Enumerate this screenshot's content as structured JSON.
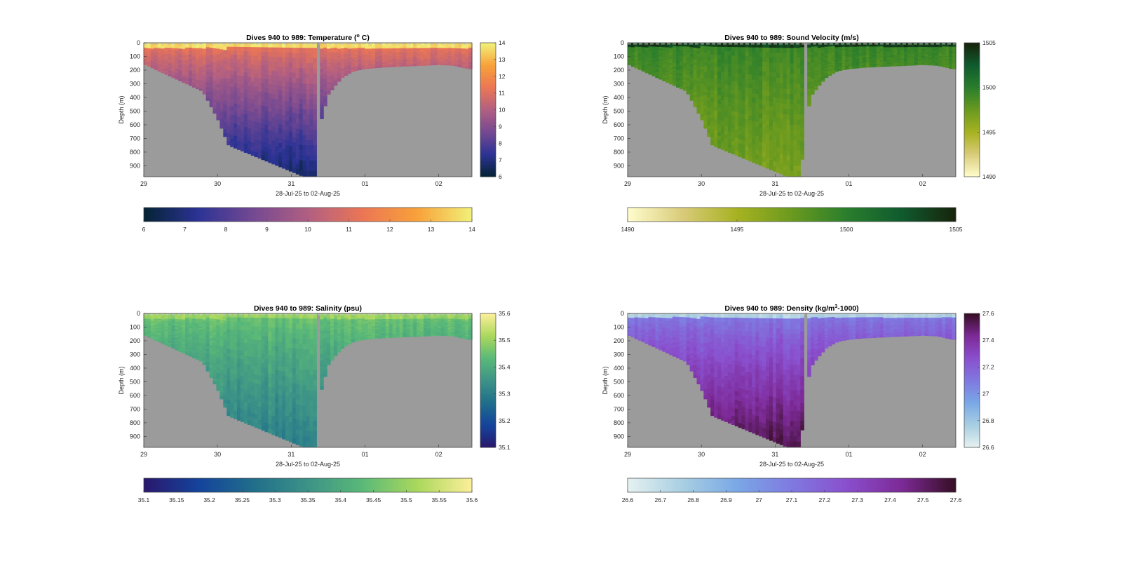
{
  "figure": {
    "background": "#ffffff",
    "land_color": "#9b9b9b",
    "axis_color": "#404040"
  },
  "chart_data": [
    {
      "type": "heatmap",
      "key": "temp",
      "title": "Dives 940 to 989: Temperature (",
      "title_sup": "o",
      "title_tail": " C)",
      "ylabel": "Depth (m)",
      "xlabel": "28-Jul-25 to 02-Aug-25",
      "x_ticks": [
        "29",
        "30",
        "31",
        "01",
        "02"
      ],
      "y_ticks": [
        "0",
        "100",
        "200",
        "300",
        "400",
        "500",
        "600",
        "700",
        "800",
        "900"
      ],
      "x_range_days": [
        29.0,
        33.45
      ],
      "ylim": [
        0,
        980
      ],
      "colormap": "thermal",
      "cmap_colors": [
        "#042333",
        "#2c3395",
        "#744992",
        "#b15f82",
        "#eb7655",
        "#f8a13a",
        "#f1f179"
      ],
      "clim": [
        6,
        14
      ],
      "colorbar_ticks": [
        "6",
        "7",
        "8",
        "9",
        "10",
        "11",
        "12",
        "13",
        "14"
      ],
      "horizontal_colorbar_ticks": [
        "6",
        "7",
        "8",
        "9",
        "10",
        "11",
        "12",
        "13",
        "14"
      ],
      "bathymetry": [
        [
          29.0,
          155
        ],
        [
          29.8,
          355
        ],
        [
          30.0,
          555
        ],
        [
          30.15,
          750
        ],
        [
          31.15,
          975
        ],
        [
          31.35,
          975
        ],
        [
          31.4,
          580
        ],
        [
          31.5,
          380
        ],
        [
          31.6,
          310
        ],
        [
          31.7,
          250
        ],
        [
          31.85,
          205
        ],
        [
          32.0,
          190
        ],
        [
          32.2,
          180
        ],
        [
          32.5,
          172
        ],
        [
          32.8,
          165
        ],
        [
          33.0,
          160
        ],
        [
          33.2,
          165
        ],
        [
          33.4,
          190
        ]
      ],
      "profile_gap": [
        31.32,
        31.4
      ],
      "surface": {
        "value": 13.6,
        "mixed_layer_depth_m": 40
      },
      "thermocline": {
        "value_top": 11.2,
        "value_bottom": 6.6,
        "bottom_depth_m": 975
      }
    },
    {
      "type": "heatmap",
      "key": "sound",
      "title": "Dives 940 to 989: Sound Velocity (m/s)",
      "ylabel": "Depth (m)",
      "xlabel": "28-Jul-25 to 02-Aug-25",
      "x_ticks": [
        "29",
        "30",
        "31",
        "01",
        "02"
      ],
      "y_ticks": [
        "0",
        "100",
        "200",
        "300",
        "400",
        "500",
        "600",
        "700",
        "800",
        "900"
      ],
      "x_range_days": [
        29.0,
        33.45
      ],
      "ylim": [
        0,
        980
      ],
      "colormap": "speed",
      "cmap_colors": [
        "#fffdcd",
        "#d9cb7a",
        "#a7b221",
        "#6a9a1f",
        "#2a7e2c",
        "#105b2f",
        "#17230b"
      ],
      "clim": [
        1490,
        1505
      ],
      "colorbar_ticks": [
        "1490",
        "1495",
        "1500",
        "1505"
      ],
      "horizontal_colorbar_ticks": [
        "1490",
        "1495",
        "1500",
        "1505"
      ],
      "bathymetry": [
        [
          29.0,
          155
        ],
        [
          29.8,
          355
        ],
        [
          30.0,
          555
        ],
        [
          30.15,
          750
        ],
        [
          31.15,
          975
        ],
        [
          31.35,
          975
        ],
        [
          31.4,
          580
        ],
        [
          31.5,
          380
        ],
        [
          31.6,
          310
        ],
        [
          31.7,
          250
        ],
        [
          31.85,
          205
        ],
        [
          32.0,
          190
        ],
        [
          32.2,
          180
        ],
        [
          32.5,
          172
        ],
        [
          32.8,
          165
        ],
        [
          33.0,
          160
        ],
        [
          33.2,
          165
        ],
        [
          33.4,
          190
        ]
      ],
      "profile_gap": [
        31.37,
        31.45
      ],
      "surface": {
        "value": 1503.8,
        "mixed_layer_depth_m": 30
      },
      "thermocline": {
        "value_top": 1499.5,
        "value_bottom": 1497.0,
        "bottom_depth_m": 975
      }
    },
    {
      "type": "heatmap",
      "key": "salt",
      "title": "Dives 940 to 989: Salinity (psu)",
      "ylabel": "Depth (m)",
      "xlabel": "28-Jul-25 to 02-Aug-25",
      "x_ticks": [
        "29",
        "30",
        "31",
        "01",
        "02"
      ],
      "y_ticks": [
        "0",
        "100",
        "200",
        "300",
        "400",
        "500",
        "600",
        "700",
        "800",
        "900"
      ],
      "x_range_days": [
        29.0,
        33.45
      ],
      "ylim": [
        0,
        980
      ],
      "colormap": "haline",
      "cmap_colors": [
        "#2a186c",
        "#14439c",
        "#206e8b",
        "#3c9387",
        "#5ab978",
        "#aad85c",
        "#fdef9a"
      ],
      "clim": [
        35.1,
        35.6
      ],
      "colorbar_ticks": [
        "35.1",
        "35.2",
        "35.3",
        "35.4",
        "35.5",
        "35.6"
      ],
      "horizontal_colorbar_ticks": [
        "35.1",
        "35.15",
        "35.2",
        "35.25",
        "35.3",
        "35.35",
        "35.4",
        "35.45",
        "35.5",
        "35.55",
        "35.6"
      ],
      "bathymetry": [
        [
          29.0,
          155
        ],
        [
          29.8,
          355
        ],
        [
          30.0,
          555
        ],
        [
          30.15,
          750
        ],
        [
          31.15,
          975
        ],
        [
          31.35,
          975
        ],
        [
          31.4,
          580
        ],
        [
          31.5,
          380
        ],
        [
          31.6,
          310
        ],
        [
          31.7,
          250
        ],
        [
          31.85,
          205
        ],
        [
          32.0,
          190
        ],
        [
          32.2,
          180
        ],
        [
          32.5,
          172
        ],
        [
          32.8,
          165
        ],
        [
          33.0,
          160
        ],
        [
          33.2,
          165
        ],
        [
          33.4,
          190
        ]
      ],
      "profile_gap": [
        31.32,
        31.4
      ],
      "surface": {
        "value": 35.5,
        "mixed_layer_depth_m": 40
      },
      "thermocline": {
        "value_top": 35.45,
        "value_bottom": 35.3,
        "bottom_depth_m": 975
      }
    },
    {
      "type": "heatmap",
      "key": "dens",
      "title": "Dives 940 to 989: Density (kg/m",
      "title_sup": "3",
      "title_tail": "-1000)",
      "ylabel": "Depth (m)",
      "xlabel": "28-Jul-25 to 02-Aug-25",
      "x_ticks": [
        "29",
        "30",
        "31",
        "01",
        "02"
      ],
      "y_ticks": [
        "0",
        "100",
        "200",
        "300",
        "400",
        "500",
        "600",
        "700",
        "800",
        "900"
      ],
      "x_range_days": [
        29.0,
        33.45
      ],
      "ylim": [
        0,
        980
      ],
      "colormap": "dense",
      "cmap_colors": [
        "#e6f1f1",
        "#a8cfe2",
        "#7aa8e6",
        "#7f79e0",
        "#8a4fcd",
        "#7d2a97",
        "#360e24"
      ],
      "clim": [
        26.6,
        27.6
      ],
      "colorbar_ticks": [
        "26.6",
        "26.8",
        "27",
        "27.2",
        "27.4",
        "27.6"
      ],
      "horizontal_colorbar_ticks": [
        "26.6",
        "26.7",
        "26.8",
        "26.9",
        "27",
        "27.1",
        "27.2",
        "27.3",
        "27.4",
        "27.5",
        "27.6"
      ],
      "bathymetry": [
        [
          29.0,
          155
        ],
        [
          29.8,
          355
        ],
        [
          30.0,
          555
        ],
        [
          30.15,
          750
        ],
        [
          31.15,
          975
        ],
        [
          31.35,
          975
        ],
        [
          31.4,
          580
        ],
        [
          31.5,
          380
        ],
        [
          31.6,
          310
        ],
        [
          31.7,
          250
        ],
        [
          31.85,
          205
        ],
        [
          32.0,
          190
        ],
        [
          32.2,
          180
        ],
        [
          32.5,
          172
        ],
        [
          32.8,
          165
        ],
        [
          33.0,
          160
        ],
        [
          33.2,
          165
        ],
        [
          33.4,
          190
        ]
      ],
      "profile_gap": [
        31.37,
        31.45
      ],
      "surface": {
        "value": 26.75,
        "mixed_layer_depth_m": 30
      },
      "thermocline": {
        "value_top": 27.1,
        "value_bottom": 27.55,
        "bottom_depth_m": 975
      }
    }
  ]
}
